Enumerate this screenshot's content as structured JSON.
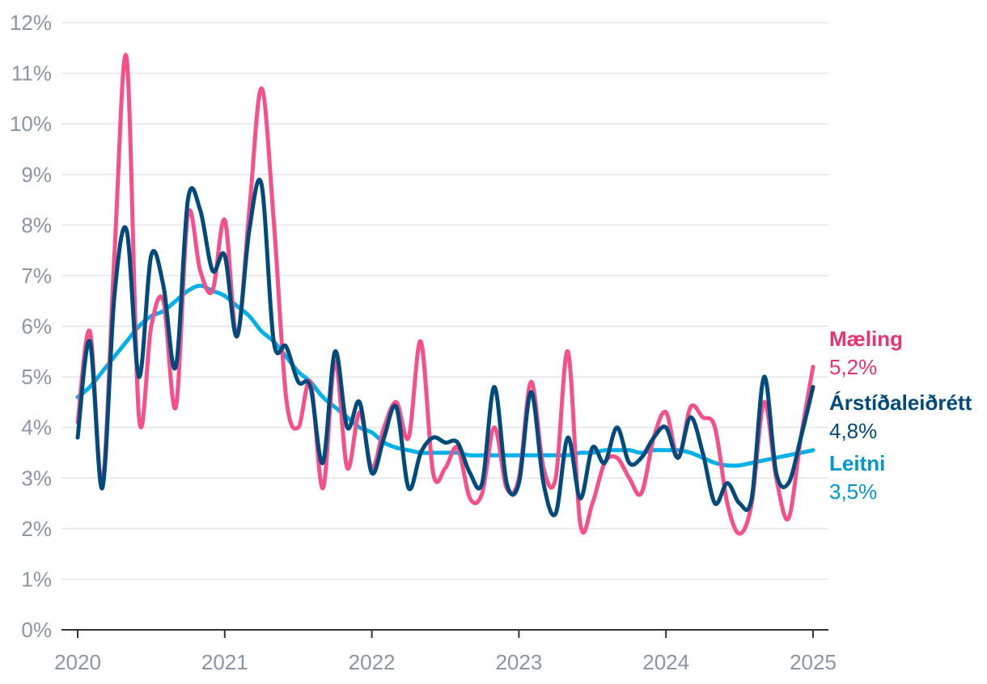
{
  "chart_data": {
    "type": "line",
    "title": "",
    "xlabel": "",
    "ylabel": "",
    "xlim": [
      2020,
      2025
    ],
    "ylim": [
      0,
      12
    ],
    "grid": true,
    "legend": "right-end labels",
    "x_ticks": [
      "2020",
      "2021",
      "2022",
      "2023",
      "2024",
      "2025"
    ],
    "y_ticks": [
      "0%",
      "1%",
      "2%",
      "3%",
      "4%",
      "5%",
      "6%",
      "7%",
      "8%",
      "9%",
      "10%",
      "11%",
      "12%"
    ],
    "series": [
      {
        "name": "Mæling",
        "end_label": "5,2%",
        "color": "#f74f8a",
        "label_color": "#e8336f",
        "points": [
          [
            2020.0,
            4.1
          ],
          [
            2020.083,
            5.9
          ],
          [
            2020.167,
            2.9
          ],
          [
            2020.25,
            7.4
          ],
          [
            2020.333,
            11.3
          ],
          [
            2020.417,
            4.2
          ],
          [
            2020.5,
            6.0
          ],
          [
            2020.583,
            6.5
          ],
          [
            2020.667,
            4.4
          ],
          [
            2020.75,
            8.2
          ],
          [
            2020.833,
            7.1
          ],
          [
            2020.917,
            6.7
          ],
          [
            2021.0,
            8.1
          ],
          [
            2021.083,
            5.8
          ],
          [
            2021.167,
            8.3
          ],
          [
            2021.25,
            10.7
          ],
          [
            2021.333,
            8.1
          ],
          [
            2021.417,
            4.6
          ],
          [
            2021.5,
            4.0
          ],
          [
            2021.583,
            4.9
          ],
          [
            2021.667,
            2.8
          ],
          [
            2021.75,
            5.3
          ],
          [
            2021.833,
            3.2
          ],
          [
            2021.917,
            4.3
          ],
          [
            2022.0,
            3.2
          ],
          [
            2022.083,
            4.0
          ],
          [
            2022.167,
            4.5
          ],
          [
            2022.25,
            3.8
          ],
          [
            2022.333,
            5.7
          ],
          [
            2022.417,
            3.1
          ],
          [
            2022.5,
            3.2
          ],
          [
            2022.583,
            3.6
          ],
          [
            2022.667,
            2.6
          ],
          [
            2022.75,
            2.7
          ],
          [
            2022.833,
            4.0
          ],
          [
            2022.917,
            2.8
          ],
          [
            2023.0,
            3.0
          ],
          [
            2023.083,
            4.9
          ],
          [
            2023.167,
            3.2
          ],
          [
            2023.25,
            3.0
          ],
          [
            2023.333,
            5.5
          ],
          [
            2023.417,
            2.1
          ],
          [
            2023.5,
            2.5
          ],
          [
            2023.583,
            3.3
          ],
          [
            2023.667,
            3.4
          ],
          [
            2023.75,
            3.0
          ],
          [
            2023.833,
            2.7
          ],
          [
            2023.917,
            3.8
          ],
          [
            2024.0,
            4.3
          ],
          [
            2024.083,
            3.4
          ],
          [
            2024.167,
            4.4
          ],
          [
            2024.25,
            4.2
          ],
          [
            2024.333,
            4.0
          ],
          [
            2024.417,
            2.5
          ],
          [
            2024.5,
            1.9
          ],
          [
            2024.583,
            2.5
          ],
          [
            2024.667,
            4.5
          ],
          [
            2024.75,
            3.0
          ],
          [
            2024.833,
            2.2
          ],
          [
            2024.917,
            3.8
          ],
          [
            2025.0,
            5.2
          ]
        ]
      },
      {
        "name": "Árstíðaleiðrétt",
        "end_label": "4,8%",
        "color": "#004a7c",
        "label_color": "#004a7c",
        "points": [
          [
            2020.0,
            3.8
          ],
          [
            2020.083,
            5.7
          ],
          [
            2020.167,
            2.8
          ],
          [
            2020.25,
            6.6
          ],
          [
            2020.333,
            7.9
          ],
          [
            2020.417,
            5.0
          ],
          [
            2020.5,
            7.4
          ],
          [
            2020.583,
            6.8
          ],
          [
            2020.667,
            5.2
          ],
          [
            2020.75,
            8.5
          ],
          [
            2020.833,
            8.3
          ],
          [
            2020.917,
            7.1
          ],
          [
            2021.0,
            7.4
          ],
          [
            2021.083,
            5.8
          ],
          [
            2021.167,
            7.9
          ],
          [
            2021.25,
            8.8
          ],
          [
            2021.333,
            5.7
          ],
          [
            2021.417,
            5.6
          ],
          [
            2021.5,
            4.9
          ],
          [
            2021.583,
            4.8
          ],
          [
            2021.667,
            3.3
          ],
          [
            2021.75,
            5.5
          ],
          [
            2021.833,
            4.0
          ],
          [
            2021.917,
            4.5
          ],
          [
            2022.0,
            3.1
          ],
          [
            2022.083,
            3.8
          ],
          [
            2022.167,
            4.4
          ],
          [
            2022.25,
            2.8
          ],
          [
            2022.333,
            3.5
          ],
          [
            2022.417,
            3.8
          ],
          [
            2022.5,
            3.7
          ],
          [
            2022.583,
            3.7
          ],
          [
            2022.667,
            3.1
          ],
          [
            2022.75,
            2.9
          ],
          [
            2022.833,
            4.8
          ],
          [
            2022.917,
            2.9
          ],
          [
            2023.0,
            2.9
          ],
          [
            2023.083,
            4.7
          ],
          [
            2023.167,
            2.9
          ],
          [
            2023.25,
            2.3
          ],
          [
            2023.333,
            3.8
          ],
          [
            2023.417,
            2.6
          ],
          [
            2023.5,
            3.6
          ],
          [
            2023.583,
            3.3
          ],
          [
            2023.667,
            4.0
          ],
          [
            2023.75,
            3.3
          ],
          [
            2023.833,
            3.4
          ],
          [
            2023.917,
            3.8
          ],
          [
            2024.0,
            4.0
          ],
          [
            2024.083,
            3.4
          ],
          [
            2024.167,
            4.2
          ],
          [
            2024.25,
            3.5
          ],
          [
            2024.333,
            2.5
          ],
          [
            2024.417,
            2.9
          ],
          [
            2024.5,
            2.5
          ],
          [
            2024.583,
            2.6
          ],
          [
            2024.667,
            5.0
          ],
          [
            2024.75,
            3.1
          ],
          [
            2024.833,
            2.9
          ],
          [
            2024.917,
            3.8
          ],
          [
            2025.0,
            4.8
          ]
        ]
      },
      {
        "name": "Leitni",
        "end_label": "3,5%",
        "color": "#00b0e8",
        "label_color": "#0097cc",
        "points": [
          [
            2020.0,
            4.6
          ],
          [
            2020.083,
            4.8
          ],
          [
            2020.167,
            5.1
          ],
          [
            2020.25,
            5.4
          ],
          [
            2020.333,
            5.7
          ],
          [
            2020.417,
            6.0
          ],
          [
            2020.5,
            6.2
          ],
          [
            2020.583,
            6.3
          ],
          [
            2020.667,
            6.5
          ],
          [
            2020.75,
            6.7
          ],
          [
            2020.833,
            6.8
          ],
          [
            2020.917,
            6.7
          ],
          [
            2021.0,
            6.6
          ],
          [
            2021.083,
            6.4
          ],
          [
            2021.167,
            6.2
          ],
          [
            2021.25,
            5.9
          ],
          [
            2021.333,
            5.7
          ],
          [
            2021.417,
            5.4
          ],
          [
            2021.5,
            5.1
          ],
          [
            2021.583,
            4.9
          ],
          [
            2021.667,
            4.6
          ],
          [
            2021.75,
            4.4
          ],
          [
            2021.833,
            4.2
          ],
          [
            2021.917,
            4.0
          ],
          [
            2022.0,
            3.9
          ],
          [
            2022.083,
            3.7
          ],
          [
            2022.167,
            3.6
          ],
          [
            2022.25,
            3.55
          ],
          [
            2022.333,
            3.5
          ],
          [
            2022.417,
            3.5
          ],
          [
            2022.5,
            3.5
          ],
          [
            2022.583,
            3.5
          ],
          [
            2022.667,
            3.45
          ],
          [
            2022.75,
            3.45
          ],
          [
            2022.833,
            3.45
          ],
          [
            2022.917,
            3.45
          ],
          [
            2023.0,
            3.45
          ],
          [
            2023.083,
            3.45
          ],
          [
            2023.167,
            3.45
          ],
          [
            2023.25,
            3.45
          ],
          [
            2023.333,
            3.45
          ],
          [
            2023.417,
            3.5
          ],
          [
            2023.5,
            3.5
          ],
          [
            2023.583,
            3.55
          ],
          [
            2023.667,
            3.55
          ],
          [
            2023.75,
            3.55
          ],
          [
            2023.833,
            3.5
          ],
          [
            2023.917,
            3.55
          ],
          [
            2024.0,
            3.55
          ],
          [
            2024.083,
            3.55
          ],
          [
            2024.167,
            3.5
          ],
          [
            2024.25,
            3.4
          ],
          [
            2024.333,
            3.3
          ],
          [
            2024.417,
            3.25
          ],
          [
            2024.5,
            3.25
          ],
          [
            2024.583,
            3.3
          ],
          [
            2024.667,
            3.35
          ],
          [
            2024.75,
            3.4
          ],
          [
            2024.833,
            3.45
          ],
          [
            2024.917,
            3.5
          ],
          [
            2025.0,
            3.55
          ]
        ]
      }
    ]
  }
}
